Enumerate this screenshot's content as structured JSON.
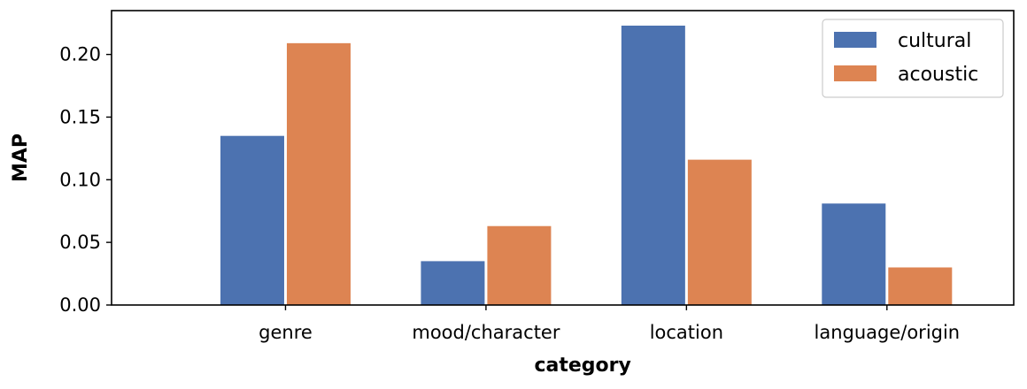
{
  "chart_data": {
    "type": "bar",
    "title": "",
    "xlabel": "category",
    "ylabel": "MAP",
    "categories": [
      "genre",
      "mood/character",
      "location",
      "language/origin"
    ],
    "series": [
      {
        "name": "cultural",
        "color": "#4c72b0",
        "values": [
          0.135,
          0.035,
          0.223,
          0.081
        ]
      },
      {
        "name": "acoustic",
        "color": "#dd8452",
        "values": [
          0.209,
          0.063,
          0.116,
          0.03
        ]
      }
    ],
    "ylim": [
      0,
      0.235
    ],
    "yticks": [
      "0.00",
      "0.05",
      "0.10",
      "0.15",
      "0.20"
    ],
    "grid": false,
    "legend_position": "top-right"
  }
}
